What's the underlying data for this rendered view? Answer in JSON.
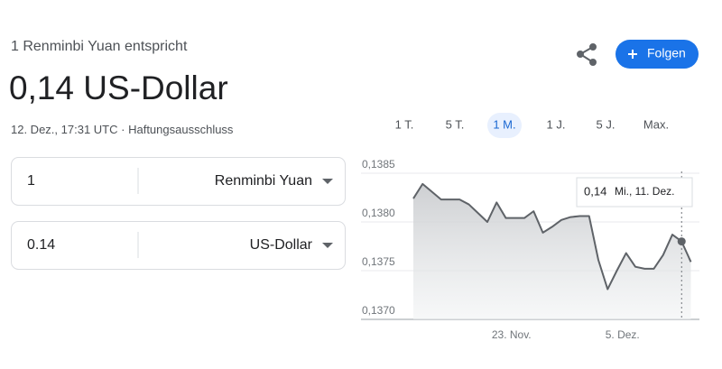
{
  "header": {
    "subtitle": "1 Renminbi Yuan entspricht",
    "result": "0,14 US-Dollar",
    "time": "12. Dez., 17:31 UTC",
    "separator": "·",
    "disclaimer": "Haftungsausschluss"
  },
  "follow_button": "Folgen",
  "converter": [
    {
      "amount": "1",
      "currency": "Renminbi Yuan"
    },
    {
      "amount": "0.14",
      "currency": "US-Dollar"
    }
  ],
  "ranges": {
    "items": [
      "1 T.",
      "5 T.",
      "1 M.",
      "1 J.",
      "5 J.",
      "Max."
    ],
    "active": 2
  },
  "chart_data": {
    "type": "line",
    "categories": [
      null,
      null,
      null,
      null,
      null,
      null,
      null,
      null,
      null,
      null,
      null,
      "23. Nov.",
      null,
      null,
      null,
      null,
      null,
      null,
      null,
      null,
      null,
      null,
      null,
      "5. Dez.",
      null,
      null,
      null,
      null,
      null,
      null,
      null
    ],
    "series": [
      {
        "color": "#5f6368",
        "values": [
          0.13824,
          0.13839,
          0.13831,
          0.13823,
          0.13823,
          0.13823,
          0.13818,
          0.13809,
          0.138,
          0.1382,
          0.13804,
          0.13804,
          0.13804,
          0.13811,
          0.13789,
          0.13795,
          0.13802,
          0.13805,
          0.13806,
          0.13806,
          0.13761,
          0.13731,
          0.1375,
          0.13768,
          0.13754,
          0.13752,
          0.13752,
          0.13766,
          0.13787,
          0.1378,
          0.13759
        ]
      }
    ],
    "ylim": [
      0.137,
      0.1385
    ],
    "yticks": [
      {
        "value": 0.1385,
        "label": "0,1385"
      },
      {
        "value": 0.138,
        "label": "0,1380"
      },
      {
        "value": 0.1375,
        "label": "0,1375"
      },
      {
        "value": 0.137,
        "label": "0,1370"
      }
    ],
    "grid": true,
    "tooltip": {
      "value_label": "0,14",
      "date": "Mi., 11. Dez."
    }
  }
}
